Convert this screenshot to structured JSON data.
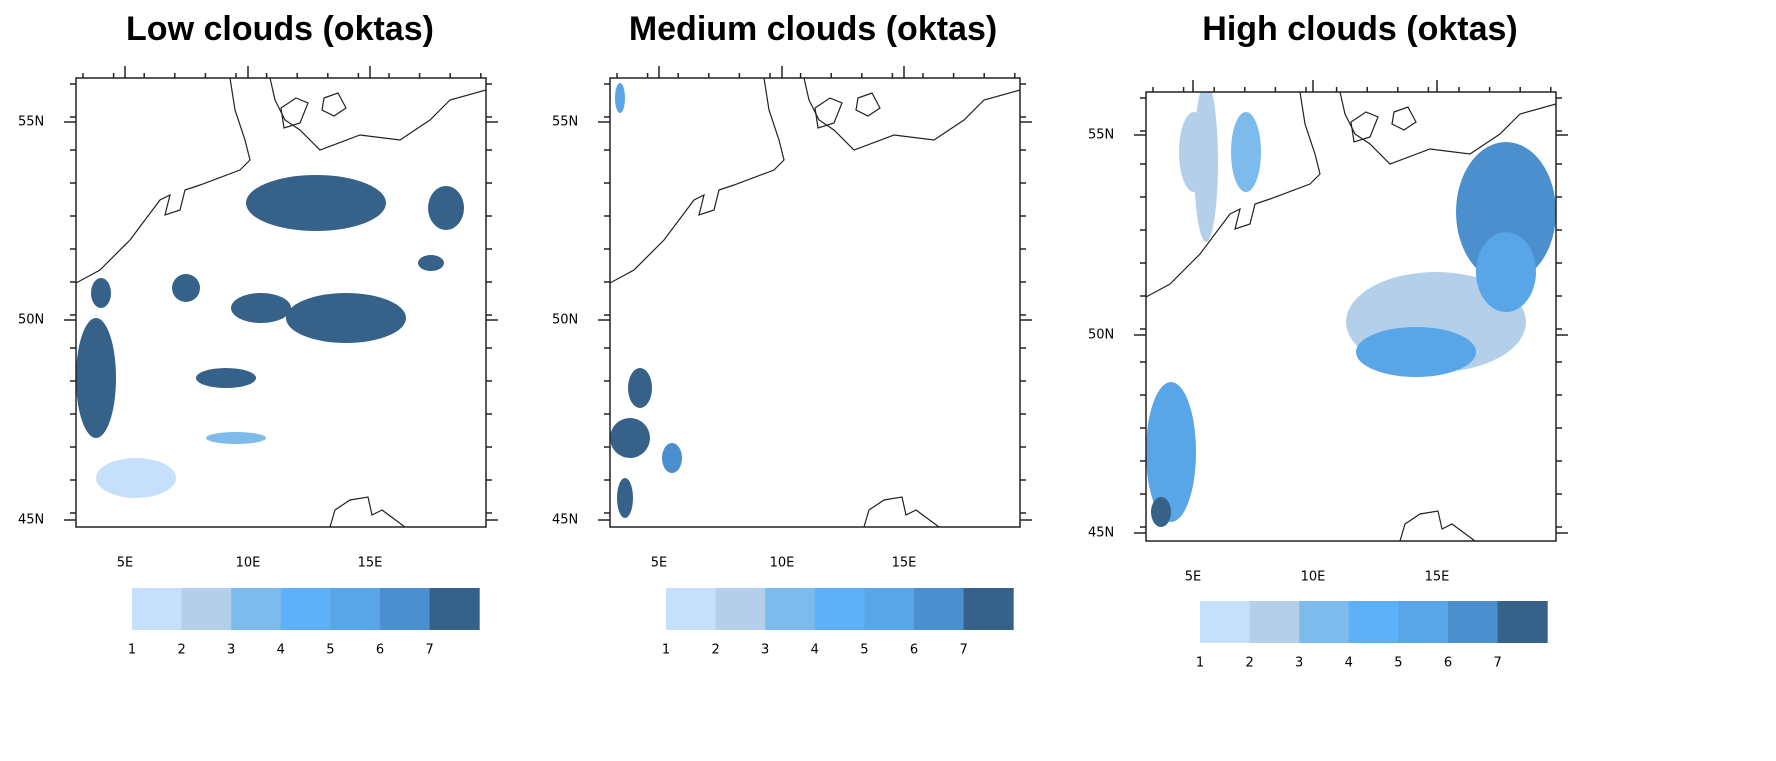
{
  "panels": [
    {
      "title": "Low clouds (oktas)",
      "lat_labels": [
        "55N",
        "50N",
        "45N"
      ],
      "lon_labels": [
        "5E",
        "10E",
        "15E"
      ]
    },
    {
      "title": "Medium clouds (oktas)",
      "lat_labels": [
        "55N",
        "50N",
        "45N"
      ],
      "lon_labels": [
        "5E",
        "10E",
        "15E"
      ]
    },
    {
      "title": "High clouds (oktas)",
      "lat_labels": [
        "55N",
        "50N",
        "45N"
      ],
      "lon_labels": [
        "5E",
        "10E",
        "15E"
      ]
    }
  ],
  "colorbar": {
    "levels": [
      1,
      2,
      3,
      4,
      5,
      6,
      7
    ],
    "colors": [
      "#c6e0fb",
      "#b3cfea",
      "#7cbbec",
      "#5eb1f8",
      "#58a5e8",
      "#4b8fce",
      "#366188"
    ]
  }
}
